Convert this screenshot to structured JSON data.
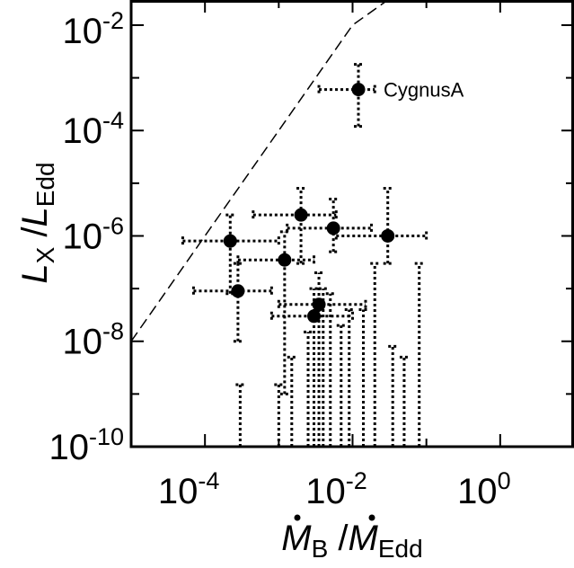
{
  "chart_data": {
    "type": "scatter",
    "title": "",
    "xlabel": {
      "symbol": "M",
      "sub": "B",
      "sep": " /",
      "symbol2": "M",
      "sub2": "Edd"
    },
    "ylabel": {
      "symbol": "L",
      "sub": "X",
      "sep": " /",
      "symbol2": "L",
      "sub2": "Edd"
    },
    "xscale": "log",
    "yscale": "log",
    "xlim": [
      1e-05,
      10
    ],
    "ylim": [
      1e-10,
      0.03
    ],
    "x_ticks": [
      {
        "value": 0.0001,
        "base": "10",
        "exp": "-4"
      },
      {
        "value": 0.01,
        "base": "10",
        "exp": "-2"
      },
      {
        "value": 1,
        "base": "10",
        "exp": "0"
      }
    ],
    "y_ticks": [
      {
        "value": 1e-10,
        "base": "10",
        "exp": "-10"
      },
      {
        "value": 1e-08,
        "base": "10",
        "exp": "-8"
      },
      {
        "value": 1e-06,
        "base": "10",
        "exp": "-6"
      },
      {
        "value": 0.0001,
        "base": "10",
        "exp": "-4"
      },
      {
        "value": 0.01,
        "base": "10",
        "exp": "-2"
      }
    ],
    "grid": false,
    "legend": "none",
    "points": [
      {
        "x": 0.012,
        "y": 0.0006,
        "x_lo": 0.0035,
        "x_hi": 0.02,
        "y_lo": 0.00012,
        "y_hi": 0.0018,
        "label": "CygnusA"
      },
      {
        "x": 0.00022,
        "y": 8e-07,
        "x_lo": 5e-05,
        "x_hi": 0.001,
        "y_lo": 8e-08,
        "y_hi": 2.5e-06
      },
      {
        "x": 0.00028,
        "y": 9e-08,
        "x_lo": 7e-05,
        "x_hi": 0.0008,
        "y_lo": 1e-08,
        "y_hi": 3e-07
      },
      {
        "x": 0.0012,
        "y": 3.5e-07,
        "x_lo": 0.00028,
        "x_hi": 0.003,
        "y_lo": 1e-09,
        "y_hi": 1.2e-06
      },
      {
        "x": 0.002,
        "y": 2.5e-06,
        "x_lo": 0.00045,
        "x_hi": 0.006,
        "y_lo": 3e-07,
        "y_hi": 8e-06
      },
      {
        "x": 0.0055,
        "y": 1.4e-06,
        "x_lo": 0.0013,
        "x_hi": 0.018,
        "y_lo": 5e-07,
        "y_hi": 5e-06
      },
      {
        "x": 0.03,
        "y": 1e-06,
        "x_lo": 0.006,
        "x_hi": 0.1,
        "y_lo": 3e-07,
        "y_hi": 8e-06
      },
      {
        "x": 0.0035,
        "y": 5e-08,
        "x_lo": 0.001,
        "x_hi": 0.015,
        "y_lo": 1e-10,
        "y_hi": 2e-07
      },
      {
        "x": 0.003,
        "y": 3e-08,
        "x_lo": 0.0008,
        "x_hi": 0.01,
        "y_lo": 1e-10,
        "y_hi": 1e-07
      }
    ],
    "upper_limits": [
      {
        "x": 0.0003,
        "y_hi": 1.5e-09
      },
      {
        "x": 0.001,
        "y_hi": 1.5e-09
      },
      {
        "x": 0.0015,
        "y_hi": 5e-09
      },
      {
        "x": 0.0025,
        "y_hi": 1.5e-08
      },
      {
        "x": 0.004,
        "y_hi": 1e-07
      },
      {
        "x": 0.005,
        "y_hi": 8e-08
      },
      {
        "x": 0.007,
        "y_hi": 2e-08
      },
      {
        "x": 0.009,
        "y_hi": 4e-08
      },
      {
        "x": 0.014,
        "y_hi": 4e-08
      },
      {
        "x": 0.02,
        "y_hi": 3e-07
      },
      {
        "x": 0.035,
        "y_hi": 8e-09
      },
      {
        "x": 0.05,
        "y_hi": 5e-09
      },
      {
        "x": 0.08,
        "y_hi": 3e-07
      }
    ],
    "reference_line": {
      "style": "dashed",
      "x": [
        1e-05,
        0.01,
        0.03
      ],
      "y": [
        1e-08,
        0.01,
        0.03
      ]
    }
  }
}
